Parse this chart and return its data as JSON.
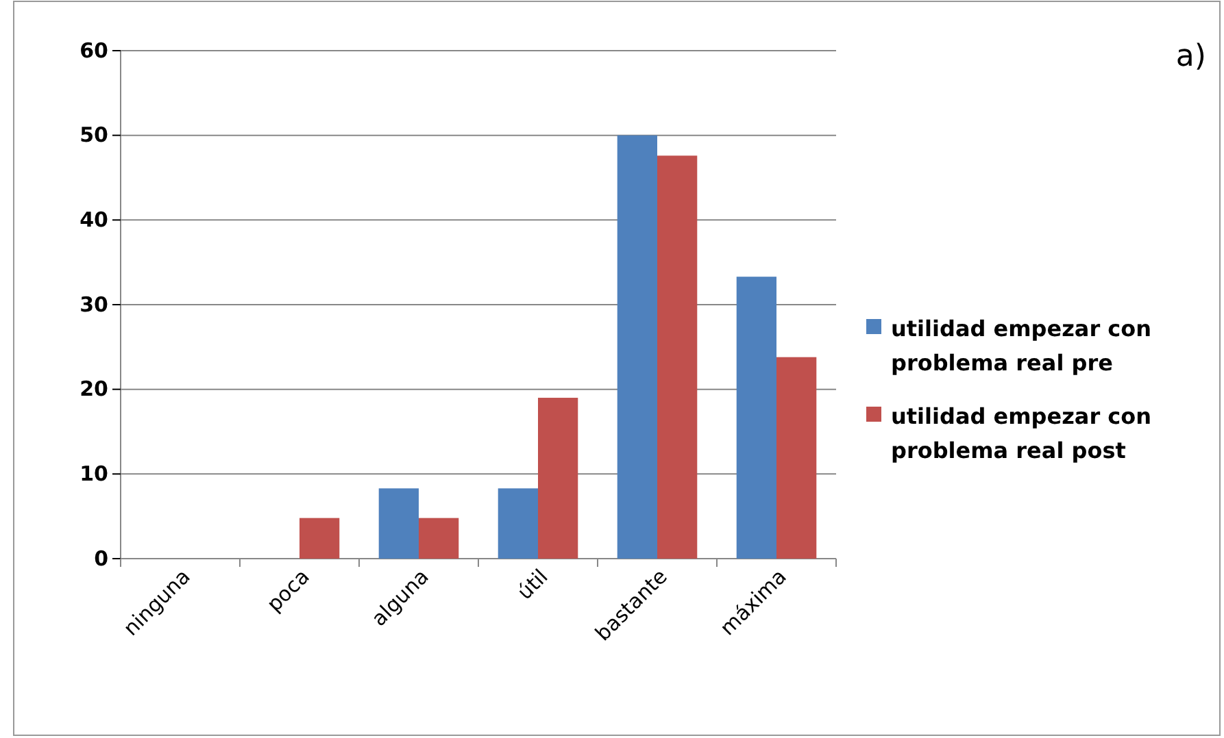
{
  "chart_data": {
    "type": "bar",
    "categories": [
      "ninguna",
      "poca",
      "alguna",
      "útil",
      "bastante",
      "máxima"
    ],
    "series": [
      {
        "name": "utilidad empezar con problema real pre",
        "color": "#4f81bd",
        "values": [
          0,
          0,
          8.3,
          8.3,
          50,
          33.3
        ]
      },
      {
        "name": "utilidad empezar con problema real post",
        "color": "#c0504d",
        "values": [
          0,
          4.8,
          4.8,
          19,
          47.6,
          23.8
        ]
      }
    ],
    "ylim": [
      0,
      60
    ],
    "yticks": [
      0,
      10,
      20,
      30,
      40,
      50,
      60
    ],
    "grid": "y",
    "legend": "right",
    "annotations": [
      "a)"
    ]
  }
}
